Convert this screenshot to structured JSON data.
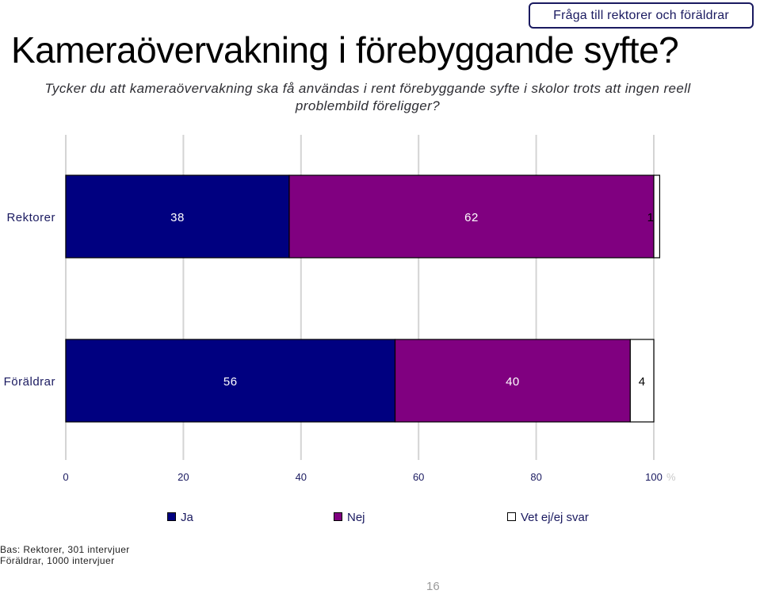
{
  "header": {
    "badge": "Fråga till rektorer och föräldrar",
    "title": "Kameraövervakning i förebyggande syfte?",
    "subtitle": "Tycker du att kameraövervakning ska få användas i rent förebyggande syfte i skolor trots att ingen reell problembild föreligger?"
  },
  "chart_data": {
    "type": "bar",
    "orientation": "horizontal",
    "stacked": true,
    "categories": [
      "Rektorer",
      "Föräldrar"
    ],
    "series": [
      {
        "name": "Ja",
        "values": [
          38,
          56
        ],
        "color": "#000080"
      },
      {
        "name": "Nej",
        "values": [
          62,
          40
        ],
        "color": "#800080"
      },
      {
        "name": "Vet ej/ej svar",
        "values": [
          1,
          4
        ],
        "color": "#ffffff"
      }
    ],
    "xlim": [
      0,
      100
    ],
    "xticks": [
      "0",
      "20",
      "40",
      "60",
      "80",
      "100"
    ],
    "xunit": "%",
    "grid": true,
    "legend_position": "bottom"
  },
  "footer": {
    "base_line1": "Bas: Rektorer, 301 intervjuer",
    "base_line2": "Föräldrar, 1000 intervjuer",
    "page_number": "16"
  }
}
